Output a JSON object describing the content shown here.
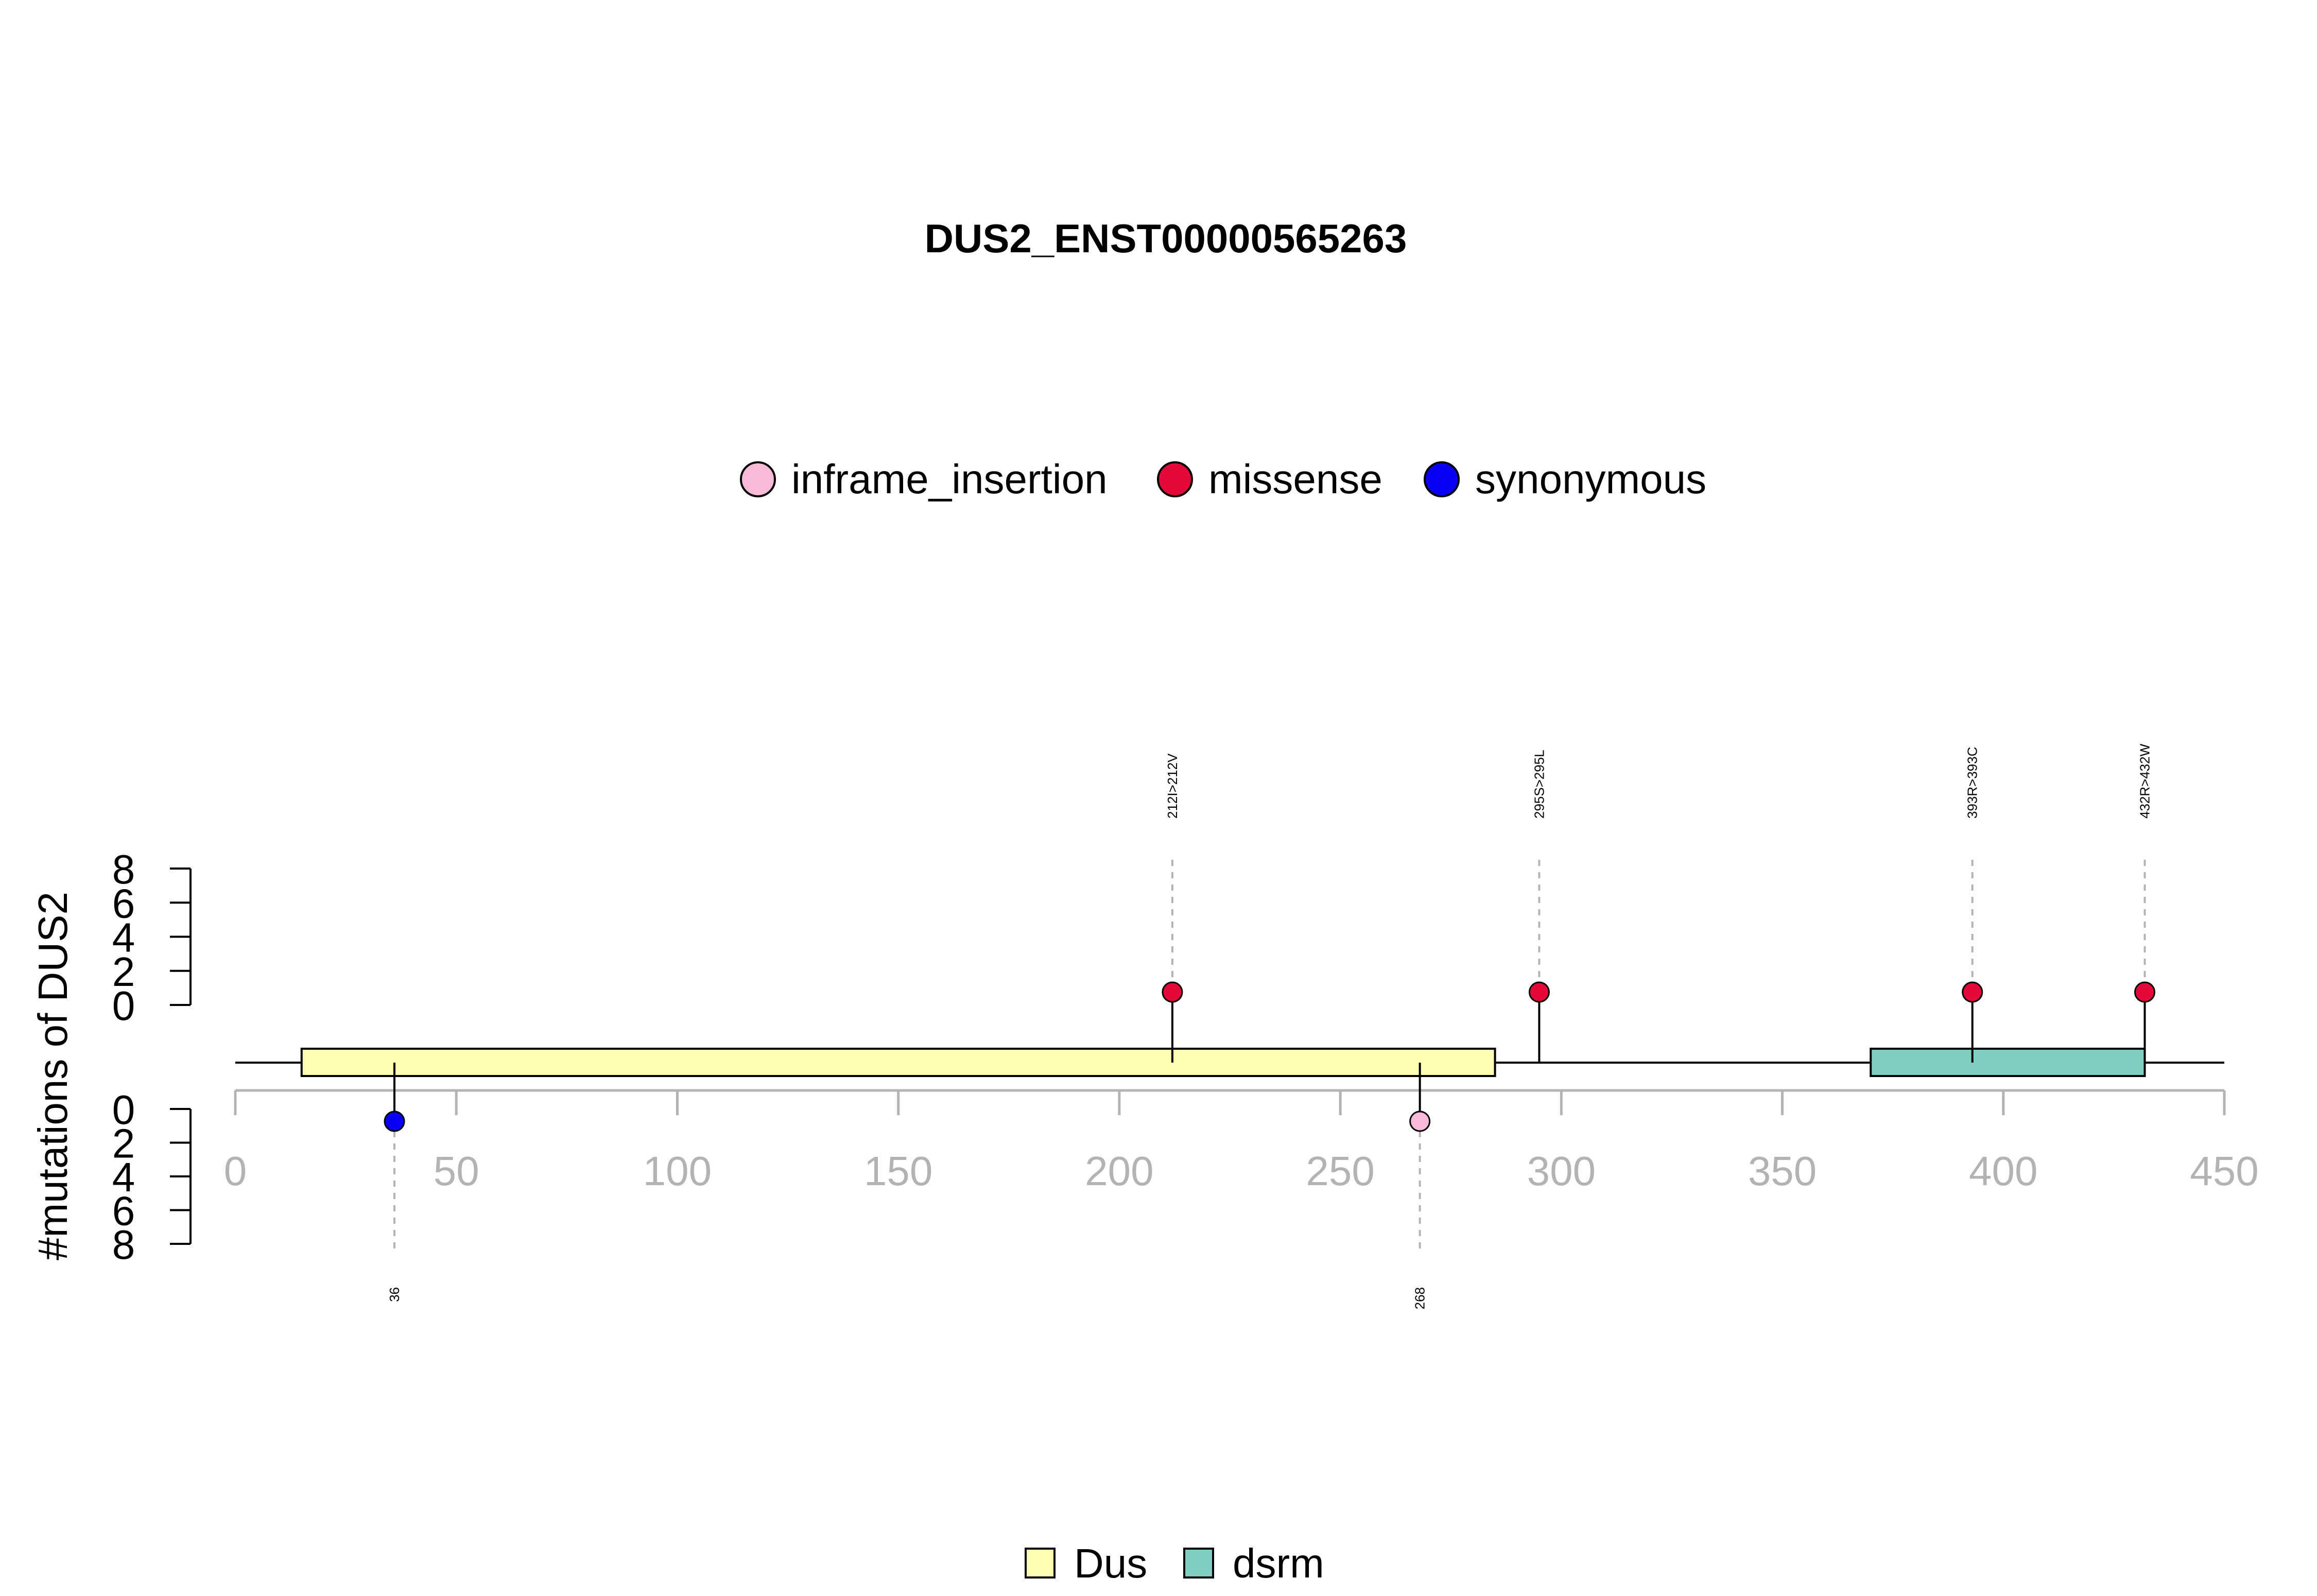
{
  "title": "DUS2_ENST00000565263",
  "ylabel": "#mutations of DUS2",
  "mutation_legend": [
    {
      "label": "inframe_insertion",
      "color": "#F9B9D9"
    },
    {
      "label": "missense",
      "color": "#E30A3A"
    },
    {
      "label": "synonymous",
      "color": "#0A00F5"
    }
  ],
  "domain_legend": [
    {
      "label": "Dus",
      "color": "#FFFFB3"
    },
    {
      "label": "dsrm",
      "color": "#80CDC1"
    }
  ],
  "chart_data": {
    "type": "lollipop",
    "protein_length": 450,
    "xlim": [
      0,
      450
    ],
    "xticks": [
      "0",
      "50",
      "100",
      "150",
      "200",
      "250",
      "300",
      "350",
      "400",
      "450"
    ],
    "yticks_top": [
      "0",
      "2",
      "4",
      "6",
      "8"
    ],
    "yticks_bottom": [
      "0",
      "2",
      "4",
      "6",
      "8"
    ],
    "ylim": [
      0,
      8
    ],
    "domains": [
      {
        "name": "Dus",
        "start": 15,
        "end": 285,
        "color": "#FFFFB3"
      },
      {
        "name": "dsrm",
        "start": 370,
        "end": 432,
        "color": "#80CDC1"
      }
    ],
    "mutations": [
      {
        "position": 36,
        "count": 1,
        "type": "synonymous",
        "side": "bottom",
        "label": "36"
      },
      {
        "position": 212,
        "count": 1,
        "type": "missense",
        "side": "top",
        "label": "212I>212V"
      },
      {
        "position": 268,
        "count": 1,
        "type": "inframe_insertion",
        "side": "bottom",
        "label": "268"
      },
      {
        "position": 295,
        "count": 1,
        "type": "missense",
        "side": "top",
        "label": "295S>295L"
      },
      {
        "position": 393,
        "count": 1,
        "type": "missense",
        "side": "top",
        "label": "393R>393C"
      },
      {
        "position": 432,
        "count": 1,
        "type": "missense",
        "side": "top",
        "label": "432R>432W"
      }
    ]
  }
}
